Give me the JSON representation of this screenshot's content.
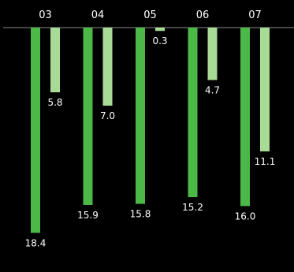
{
  "chart_data": {
    "type": "bar",
    "orientation": "downward",
    "categories": [
      "03",
      "04",
      "05",
      "06",
      "07"
    ],
    "series": [
      {
        "values": [
          18.4,
          15.9,
          15.8,
          15.2,
          16.0
        ],
        "color": "#4cb848"
      },
      {
        "values": [
          5.8,
          7.0,
          0.3,
          4.7,
          11.1
        ],
        "color": "#a8dc96"
      }
    ],
    "value_labels": [
      [
        "18.4",
        "15.9",
        "15.8",
        "15.2",
        "16.0"
      ],
      [
        "5.8",
        "7.0",
        "0.3",
        "4.7",
        "11.1"
      ]
    ],
    "ylim": [
      0,
      20
    ],
    "grid": false,
    "axis_line_color": "#888888",
    "label_color": "#ffffff"
  }
}
